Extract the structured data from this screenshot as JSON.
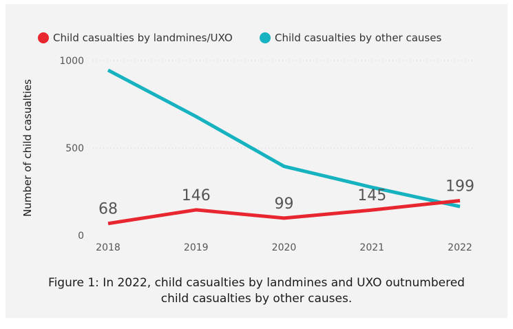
{
  "chart_data": {
    "type": "line",
    "x": [
      "2018",
      "2019",
      "2020",
      "2021",
      "2022"
    ],
    "series": [
      {
        "name": "Child casualties by landmines/UXO",
        "color": "#e8262f",
        "values": [
          68,
          146,
          99,
          145,
          199
        ],
        "data_labels": [
          "68",
          "146",
          "99",
          "145",
          "199"
        ]
      },
      {
        "name": "Child casualties by other causes",
        "color": "#17b2c0",
        "values": [
          945,
          680,
          395,
          275,
          165
        ]
      }
    ],
    "ylabel": "Number of child casualties",
    "xlabel": "",
    "ylim": [
      0,
      1000
    ],
    "yticks": [
      "0",
      "500",
      "1000"
    ],
    "grid": true,
    "legend": "top-left"
  },
  "caption": "Figure 1: In 2022, child casualties by landmines and UXO outnumbered child casualties by other causes."
}
